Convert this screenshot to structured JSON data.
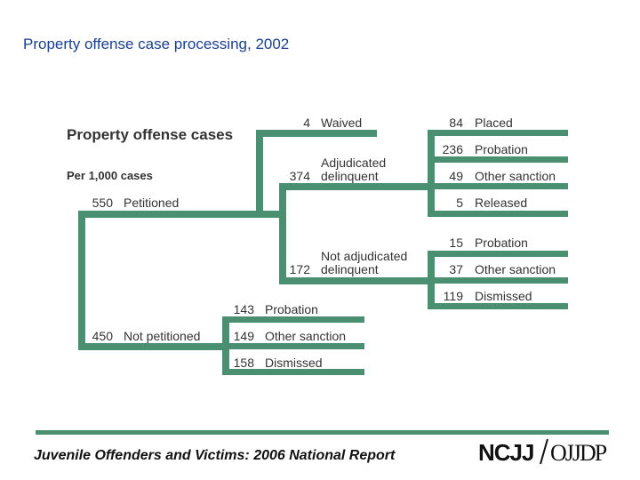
{
  "page_title": "Property offense case processing, 2002",
  "diagram": {
    "heading": "Property offense cases",
    "subheading": "Per 1,000 cases",
    "petitioned": {
      "value": "550",
      "label": "Petitioned"
    },
    "not_petitioned": {
      "value": "450",
      "label": "Not petitioned"
    },
    "waived": {
      "value": "4",
      "label": "Waived"
    },
    "adjudicated": {
      "value": "374",
      "label_line1": "Adjudicated",
      "label_line2": "delinquent"
    },
    "not_adjudicated": {
      "value": "172",
      "label_line1": "Not adjudicated",
      "label_line2": "delinquent"
    },
    "adjudicated_outcomes": [
      {
        "value": "84",
        "label": "Placed"
      },
      {
        "value": "236",
        "label": "Probation"
      },
      {
        "value": "49",
        "label": "Other sanction"
      },
      {
        "value": "5",
        "label": "Released"
      }
    ],
    "not_adjudicated_outcomes": [
      {
        "value": "15",
        "label": "Probation"
      },
      {
        "value": "37",
        "label": "Other sanction"
      },
      {
        "value": "119",
        "label": "Dismissed"
      }
    ],
    "not_petitioned_outcomes": [
      {
        "value": "143",
        "label": "Probation"
      },
      {
        "value": "149",
        "label": "Other sanction"
      },
      {
        "value": "158",
        "label": "Dismissed"
      }
    ],
    "bar_color": "#4a8f72"
  },
  "footer": {
    "text": "Juvenile Offenders and Victims: 2006 National Report",
    "logo_left": "NCJJ",
    "logo_right": "OJJDP"
  }
}
